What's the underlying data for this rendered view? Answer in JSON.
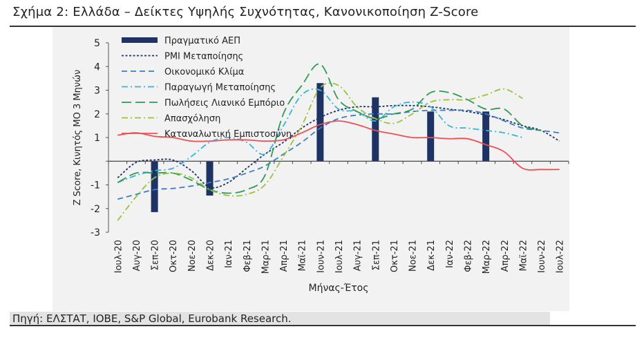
{
  "figure": {
    "title": "Σχήμα 2: Ελλάδα – Δείκτες Υψηλής Συχνότητας, Κανονικοποίηση Z-Score",
    "source": "Πηγή: ΕΛΣΤΑΤ, ΙΟΒΕ, S&P Global, Eurobank Research."
  },
  "chart_data": {
    "type": "line",
    "xlabel": "Μήνας-Έτος",
    "ylabel": "Z Score, Κινητός ΜΟ 3 Μηνών",
    "ylim": [
      -3,
      5
    ],
    "yticks": [
      -3,
      -2,
      -1,
      0,
      1,
      2,
      3,
      4,
      5
    ],
    "ytick_labels": [
      "-3",
      "-2",
      "-1",
      "",
      "1",
      "2",
      "3",
      "4",
      "5"
    ],
    "legend_position": "top-right",
    "categories": [
      "Ιουλ-20",
      "Αυγ-20",
      "Σεπ-20",
      "Οκτ-20",
      "Νοε-20",
      "Δεκ-20",
      "Ιαν-21",
      "Φεβ-21",
      "Μαρ-21",
      "Απρ-21",
      "Μαϊ-21",
      "Ιουν-21",
      "Ιουλ-21",
      "Αυγ-21",
      "Σεπ-21",
      "Οκτ-21",
      "Νοε-21",
      "Δεκ-21",
      "Ιαν-22",
      "Φεβ-22",
      "Μαρ-22",
      "Απρ-22",
      "Μαϊ-22",
      "Ιουν-22",
      "Ιουλ-22"
    ],
    "series": [
      {
        "name": "Πραγματικό ΑΕΠ",
        "kind": "bar",
        "color": "#1f3264",
        "values": [
          null,
          null,
          -2.15,
          null,
          null,
          -1.45,
          null,
          null,
          null,
          null,
          null,
          3.3,
          null,
          null,
          2.7,
          null,
          null,
          2.1,
          null,
          null,
          2.1,
          null,
          null,
          null,
          null
        ]
      },
      {
        "name": "PMI Μεταποίησης",
        "kind": "line",
        "style": "dotted",
        "color": "#1f3264",
        "values": [
          -0.7,
          -0.05,
          0.05,
          0.05,
          -0.4,
          -1.1,
          -0.9,
          -0.3,
          0.3,
          0.8,
          1.4,
          1.85,
          2.15,
          2.3,
          2.3,
          2.35,
          2.35,
          2.3,
          2.2,
          2.1,
          1.95,
          1.75,
          1.5,
          1.3,
          0.85
        ]
      },
      {
        "name": "Οικονομικό Κλίμα",
        "kind": "line",
        "style": "dashed",
        "color": "#3a7cc8",
        "values": [
          -1.6,
          -1.4,
          -1.2,
          -1.15,
          -1.05,
          -0.9,
          -0.75,
          -0.5,
          -0.2,
          0.3,
          0.8,
          1.4,
          1.8,
          1.95,
          2.0,
          2.0,
          2.1,
          2.15,
          2.15,
          2.15,
          2.0,
          1.7,
          1.4,
          1.3,
          1.2
        ]
      },
      {
        "name": "Παραγωγή Μεταποίησης",
        "kind": "line",
        "style": "dashdot",
        "color": "#35b5d8",
        "values": [
          -0.9,
          -0.6,
          -0.4,
          -0.3,
          0.2,
          0.8,
          1.0,
          0.8,
          0.3,
          1.5,
          2.8,
          3.0,
          2.2,
          2.1,
          1.7,
          2.3,
          2.5,
          2.3,
          1.5,
          1.4,
          1.3,
          1.2,
          1.0,
          null,
          null
        ]
      },
      {
        "name": "Πωλήσεις Λιανικό Εμπόριο",
        "kind": "line",
        "style": "longdash",
        "color": "#2e9a55",
        "values": [
          -0.9,
          -0.5,
          -0.5,
          -0.5,
          -0.8,
          -1.2,
          -1.35,
          -1.2,
          -0.6,
          2.0,
          3.2,
          4.1,
          2.6,
          2.1,
          1.8,
          2.0,
          2.2,
          2.9,
          2.9,
          2.6,
          2.2,
          2.2,
          1.5,
          1.3,
          null
        ]
      },
      {
        "name": "Απασχόληση",
        "kind": "line",
        "style": "dashdot",
        "color": "#99c23e",
        "values": [
          -2.5,
          -1.5,
          -0.7,
          -0.5,
          -0.7,
          -1.2,
          -1.45,
          -1.4,
          -1.0,
          0.2,
          1.5,
          3.1,
          3.2,
          2.3,
          1.8,
          1.6,
          2.0,
          2.5,
          2.6,
          2.6,
          2.8,
          3.05,
          2.65,
          null,
          null
        ]
      },
      {
        "name": "Καταναλωτική Εμπιστοσύνη",
        "kind": "line",
        "style": "solid",
        "color": "#ee4f55",
        "values": [
          1.1,
          1.2,
          1.05,
          1.0,
          0.85,
          0.85,
          0.9,
          0.9,
          0.85,
          0.9,
          1.2,
          1.55,
          1.7,
          1.55,
          1.3,
          1.15,
          1.0,
          1.0,
          0.95,
          0.95,
          0.7,
          0.4,
          -0.3,
          -0.35,
          -0.35
        ]
      }
    ]
  },
  "colors": {
    "panel_bg": "#f2f2f2",
    "source_band": "#e3e3e3"
  }
}
